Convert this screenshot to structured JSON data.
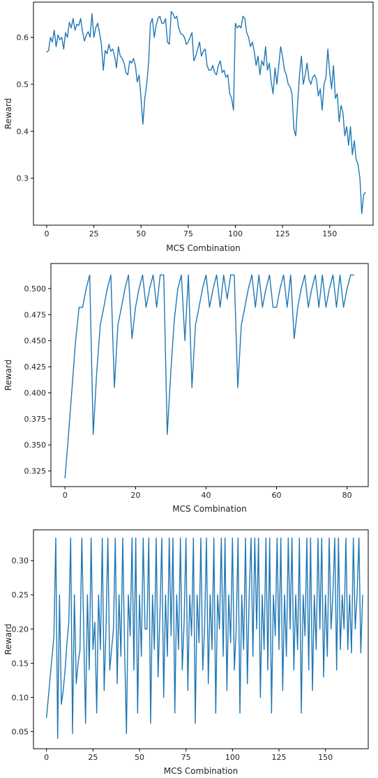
{
  "chart_data": [
    {
      "type": "line",
      "xlabel": "MCS Combination",
      "ylabel": "Reward",
      "xlim": [
        -7,
        173
      ],
      "ylim": [
        0.2,
        0.675
      ],
      "xticks": [
        0,
        25,
        50,
        75,
        100,
        125,
        150
      ],
      "yticks": [
        0.3,
        0.4,
        0.5,
        0.6
      ],
      "ytick_labels": [
        "0.3",
        "0.4",
        "0.5",
        "0.6"
      ],
      "grid": false,
      "color": "#1f77b4",
      "series": [
        {
          "values": [
            0.568,
            0.572,
            0.6,
            0.59,
            0.615,
            0.58,
            0.605,
            0.595,
            0.6,
            0.575,
            0.61,
            0.6,
            0.632,
            0.62,
            0.64,
            0.615,
            0.628,
            0.625,
            0.64,
            0.612,
            0.592,
            0.605,
            0.612,
            0.6,
            0.65,
            0.6,
            0.62,
            0.63,
            0.61,
            0.585,
            0.53,
            0.572,
            0.565,
            0.585,
            0.57,
            0.575,
            0.56,
            0.535,
            0.58,
            0.56,
            0.555,
            0.545,
            0.525,
            0.52,
            0.55,
            0.545,
            0.555,
            0.54,
            0.505,
            0.52,
            0.47,
            0.415,
            0.47,
            0.5,
            0.545,
            0.63,
            0.64,
            0.6,
            0.625,
            0.64,
            0.645,
            0.63,
            0.63,
            0.64,
            0.59,
            0.585,
            0.655,
            0.65,
            0.64,
            0.645,
            0.62,
            0.608,
            0.606,
            0.6,
            0.585,
            0.59,
            0.6,
            0.61,
            0.55,
            0.56,
            0.575,
            0.59,
            0.56,
            0.57,
            0.575,
            0.54,
            0.53,
            0.53,
            0.54,
            0.525,
            0.52,
            0.54,
            0.55,
            0.525,
            0.53,
            0.515,
            0.52,
            0.48,
            0.47,
            0.445,
            0.63,
            0.62,
            0.625,
            0.62,
            0.645,
            0.64,
            0.61,
            0.6,
            0.58,
            0.59,
            0.57,
            0.54,
            0.56,
            0.52,
            0.55,
            0.54,
            0.58,
            0.53,
            0.545,
            0.505,
            0.48,
            0.535,
            0.5,
            0.54,
            0.58,
            0.56,
            0.53,
            0.52,
            0.5,
            0.495,
            0.48,
            0.405,
            0.39,
            0.46,
            0.52,
            0.56,
            0.5,
            0.52,
            0.545,
            0.51,
            0.5,
            0.515,
            0.52,
            0.51,
            0.475,
            0.49,
            0.445,
            0.5,
            0.515,
            0.575,
            0.525,
            0.49,
            0.54,
            0.47,
            0.48,
            0.42,
            0.455,
            0.44,
            0.39,
            0.41,
            0.37,
            0.41,
            0.35,
            0.38,
            0.34,
            0.33,
            0.3,
            0.225,
            0.265,
            0.27
          ]
        }
      ]
    },
    {
      "type": "line",
      "xlabel": "MCS Combination",
      "ylabel": "Reward",
      "xlim": [
        -4,
        86
      ],
      "ylim": [
        0.31,
        0.524
      ],
      "xticks": [
        0,
        20,
        40,
        60,
        80
      ],
      "yticks": [
        0.325,
        0.35,
        0.375,
        0.4,
        0.425,
        0.45,
        0.475,
        0.5
      ],
      "ytick_labels": [
        "0.325",
        "0.350",
        "0.375",
        "0.400",
        "0.425",
        "0.450",
        "0.475",
        "0.500"
      ],
      "grid": false,
      "color": "#1f77b4",
      "series": [
        {
          "values": [
            0.318,
            0.36,
            0.405,
            0.45,
            0.482,
            0.482,
            0.5,
            0.513,
            0.36,
            0.42,
            0.465,
            0.482,
            0.5,
            0.513,
            0.405,
            0.465,
            0.482,
            0.5,
            0.513,
            0.452,
            0.482,
            0.5,
            0.513,
            0.482,
            0.5,
            0.513,
            0.482,
            0.513,
            0.513,
            0.36,
            0.42,
            0.47,
            0.5,
            0.513,
            0.45,
            0.513,
            0.405,
            0.465,
            0.482,
            0.5,
            0.513,
            0.482,
            0.5,
            0.513,
            0.482,
            0.513,
            0.49,
            0.513,
            0.513,
            0.405,
            0.465,
            0.482,
            0.5,
            0.513,
            0.482,
            0.513,
            0.482,
            0.5,
            0.513,
            0.482,
            0.482,
            0.5,
            0.513,
            0.482,
            0.513,
            0.452,
            0.482,
            0.5,
            0.513,
            0.482,
            0.5,
            0.513,
            0.482,
            0.513,
            0.482,
            0.5,
            0.513,
            0.482,
            0.513,
            0.482,
            0.5,
            0.513,
            0.513
          ]
        }
      ]
    },
    {
      "type": "line",
      "xlabel": "MCS Combination",
      "ylabel": "Reward",
      "xlim": [
        -7,
        173
      ],
      "ylim": [
        0.025,
        0.345
      ],
      "xticks": [
        0,
        25,
        50,
        75,
        100,
        125,
        150
      ],
      "yticks": [
        0.05,
        0.1,
        0.15,
        0.2,
        0.25,
        0.3
      ],
      "ytick_labels": [
        "0.05",
        "0.10",
        "0.15",
        "0.20",
        "0.25",
        "0.30"
      ],
      "grid": false,
      "color": "#1f77b4",
      "series": [
        {
          "values": [
            0.07,
            0.1,
            0.13,
            0.16,
            0.19,
            0.333,
            0.04,
            0.25,
            0.09,
            0.11,
            0.14,
            0.18,
            0.21,
            0.333,
            0.047,
            0.25,
            0.12,
            0.15,
            0.17,
            0.333,
            0.2,
            0.062,
            0.25,
            0.14,
            0.333,
            0.17,
            0.21,
            0.077,
            0.25,
            0.17,
            0.333,
            0.11,
            0.2,
            0.333,
            0.14,
            0.17,
            0.2,
            0.333,
            0.12,
            0.25,
            0.16,
            0.333,
            0.17,
            0.047,
            0.25,
            0.19,
            0.333,
            0.14,
            0.333,
            0.077,
            0.25,
            0.16,
            0.333,
            0.2,
            0.2,
            0.333,
            0.062,
            0.25,
            0.17,
            0.333,
            0.13,
            0.22,
            0.333,
            0.1,
            0.25,
            0.16,
            0.333,
            0.19,
            0.333,
            0.077,
            0.25,
            0.17,
            0.333,
            0.14,
            0.21,
            0.333,
            0.11,
            0.25,
            0.19,
            0.333,
            0.062,
            0.25,
            0.18,
            0.333,
            0.14,
            0.2,
            0.333,
            0.12,
            0.25,
            0.17,
            0.333,
            0.077,
            0.25,
            0.2,
            0.333,
            0.16,
            0.333,
            0.11,
            0.25,
            0.18,
            0.333,
            0.14,
            0.2,
            0.333,
            0.077,
            0.25,
            0.17,
            0.333,
            0.12,
            0.25,
            0.333,
            0.16,
            0.333,
            0.2,
            0.333,
            0.1,
            0.25,
            0.17,
            0.333,
            0.14,
            0.333,
            0.077,
            0.25,
            0.19,
            0.333,
            0.17,
            0.333,
            0.11,
            0.25,
            0.16,
            0.333,
            0.2,
            0.333,
            0.14,
            0.25,
            0.17,
            0.333,
            0.077,
            0.25,
            0.19,
            0.333,
            0.14,
            0.333,
            0.11,
            0.25,
            0.17,
            0.333,
            0.2,
            0.333,
            0.13,
            0.25,
            0.16,
            0.333,
            0.2,
            0.25,
            0.333,
            0.14,
            0.333,
            0.17,
            0.25,
            0.2,
            0.333,
            0.17,
            0.25,
            0.165,
            0.333,
            0.2,
            0.25,
            0.333,
            0.165,
            0.25
          ]
        }
      ]
    }
  ]
}
